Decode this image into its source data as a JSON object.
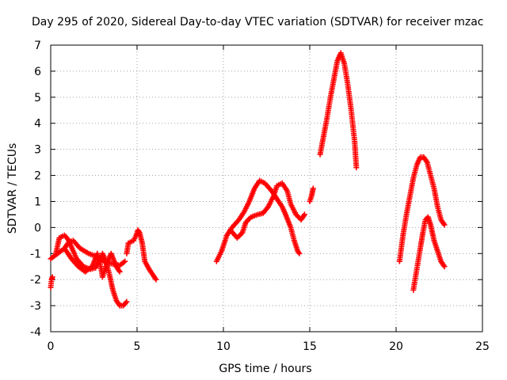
{
  "chart_data": {
    "type": "scatter",
    "title": "Day 295 of 2020, Sidereal Day-to-day VTEC variation (SDTVAR) for receiver mzac",
    "xlabel": "GPS time / hours",
    "ylabel": "SDTVAR / TECUs",
    "xlim": [
      0,
      25
    ],
    "ylim": [
      -4,
      7
    ],
    "xticks": [
      "0",
      "5",
      "10",
      "15",
      "20",
      "25"
    ],
    "yticks": [
      "-4",
      "-3",
      "-2",
      "-1",
      "0",
      "1",
      "2",
      "3",
      "4",
      "5",
      "6",
      "7"
    ],
    "grid": true,
    "marker": "plus",
    "color": "#ff0000",
    "tracks": [
      [
        [
          0.0,
          -2.3
        ],
        [
          0.05,
          -2.0
        ],
        [
          0.1,
          -1.9
        ]
      ],
      [
        [
          0.0,
          -1.2
        ],
        [
          0.4,
          -1.0
        ],
        [
          0.8,
          -0.8
        ],
        [
          1.0,
          -0.6
        ],
        [
          1.3,
          -0.5
        ],
        [
          1.7,
          -0.8
        ],
        [
          2.2,
          -1.0
        ],
        [
          2.6,
          -1.1
        ],
        [
          2.9,
          -1.2
        ],
        [
          3.2,
          -1.35
        ],
        [
          3.6,
          -1.4
        ],
        [
          4.0,
          -1.45
        ],
        [
          4.3,
          -1.3
        ]
      ],
      [
        [
          0.3,
          -1.0
        ],
        [
          0.5,
          -0.4
        ],
        [
          0.8,
          -0.3
        ],
        [
          1.0,
          -0.45
        ],
        [
          1.2,
          -0.75
        ],
        [
          1.5,
          -1.2
        ],
        [
          1.9,
          -1.5
        ],
        [
          2.3,
          -1.6
        ],
        [
          2.6,
          -1.55
        ],
        [
          2.8,
          -1.3
        ],
        [
          3.0,
          -1.0
        ],
        [
          3.2,
          -1.3
        ],
        [
          3.4,
          -1.8
        ],
        [
          3.6,
          -2.4
        ],
        [
          3.8,
          -2.8
        ],
        [
          4.0,
          -3.0
        ],
        [
          4.2,
          -3.0
        ],
        [
          4.4,
          -2.85
        ]
      ],
      [
        [
          0.8,
          -0.8
        ],
        [
          1.2,
          -1.2
        ],
        [
          1.6,
          -1.5
        ],
        [
          2.0,
          -1.7
        ],
        [
          2.4,
          -1.5
        ],
        [
          2.7,
          -1.0
        ],
        [
          2.9,
          -1.5
        ],
        [
          3.0,
          -1.9
        ],
        [
          3.3,
          -1.3
        ],
        [
          3.5,
          -1.0
        ],
        [
          3.8,
          -1.5
        ],
        [
          4.0,
          -1.7
        ]
      ],
      [
        [
          4.4,
          -1.0
        ],
        [
          4.5,
          -0.6
        ],
        [
          4.8,
          -0.5
        ],
        [
          4.95,
          -0.3
        ],
        [
          5.05,
          -0.1
        ],
        [
          5.15,
          -0.2
        ],
        [
          5.3,
          -0.6
        ],
        [
          5.45,
          -1.3
        ],
        [
          5.7,
          -1.6
        ],
        [
          6.1,
          -2.0
        ]
      ],
      [
        [
          9.6,
          -1.3
        ],
        [
          9.9,
          -0.9
        ],
        [
          10.2,
          -0.3
        ],
        [
          10.5,
          0.0
        ],
        [
          10.9,
          0.3
        ],
        [
          11.2,
          0.6
        ],
        [
          11.5,
          1.0
        ],
        [
          11.8,
          1.5
        ],
        [
          12.1,
          1.8
        ],
        [
          12.4,
          1.7
        ],
        [
          12.8,
          1.4
        ],
        [
          13.1,
          1.1
        ],
        [
          13.4,
          0.8
        ],
        [
          13.6,
          0.5
        ],
        [
          13.9,
          0.0
        ],
        [
          14.1,
          -0.5
        ],
        [
          14.3,
          -0.9
        ],
        [
          14.4,
          -1.0
        ]
      ],
      [
        [
          10.4,
          -0.1
        ],
        [
          10.8,
          -0.4
        ],
        [
          11.1,
          -0.2
        ],
        [
          11.3,
          0.2
        ],
        [
          11.6,
          0.4
        ],
        [
          12.0,
          0.5
        ],
        [
          12.3,
          0.55
        ],
        [
          12.6,
          0.8
        ],
        [
          12.9,
          1.2
        ],
        [
          13.1,
          1.6
        ],
        [
          13.4,
          1.7
        ],
        [
          13.7,
          1.4
        ],
        [
          13.9,
          0.9
        ],
        [
          14.2,
          0.5
        ],
        [
          14.5,
          0.3
        ],
        [
          14.7,
          0.5
        ]
      ],
      [
        [
          15.0,
          1.0
        ],
        [
          15.1,
          1.2
        ],
        [
          15.2,
          1.5
        ]
      ],
      [
        [
          15.6,
          2.8
        ],
        [
          15.8,
          3.5
        ],
        [
          16.0,
          4.2
        ],
        [
          16.2,
          5.0
        ],
        [
          16.4,
          5.7
        ],
        [
          16.6,
          6.4
        ],
        [
          16.8,
          6.7
        ],
        [
          17.0,
          6.3
        ],
        [
          17.2,
          5.5
        ],
        [
          17.4,
          4.5
        ],
        [
          17.6,
          3.3
        ],
        [
          17.7,
          2.3
        ]
      ],
      [
        [
          20.2,
          -1.3
        ],
        [
          20.4,
          -0.3
        ],
        [
          20.6,
          0.5
        ],
        [
          20.8,
          1.2
        ],
        [
          21.0,
          1.9
        ],
        [
          21.2,
          2.4
        ],
        [
          21.4,
          2.7
        ],
        [
          21.6,
          2.7
        ],
        [
          21.8,
          2.5
        ],
        [
          22.0,
          2.0
        ],
        [
          22.2,
          1.5
        ],
        [
          22.4,
          0.8
        ],
        [
          22.6,
          0.3
        ],
        [
          22.8,
          0.1
        ]
      ],
      [
        [
          21.0,
          -2.4
        ],
        [
          21.2,
          -1.6
        ],
        [
          21.4,
          -0.8
        ],
        [
          21.55,
          -0.2
        ],
        [
          21.7,
          0.3
        ],
        [
          21.85,
          0.4
        ],
        [
          22.0,
          0.1
        ],
        [
          22.2,
          -0.5
        ],
        [
          22.4,
          -0.9
        ],
        [
          22.6,
          -1.3
        ],
        [
          22.8,
          -1.5
        ]
      ]
    ]
  }
}
